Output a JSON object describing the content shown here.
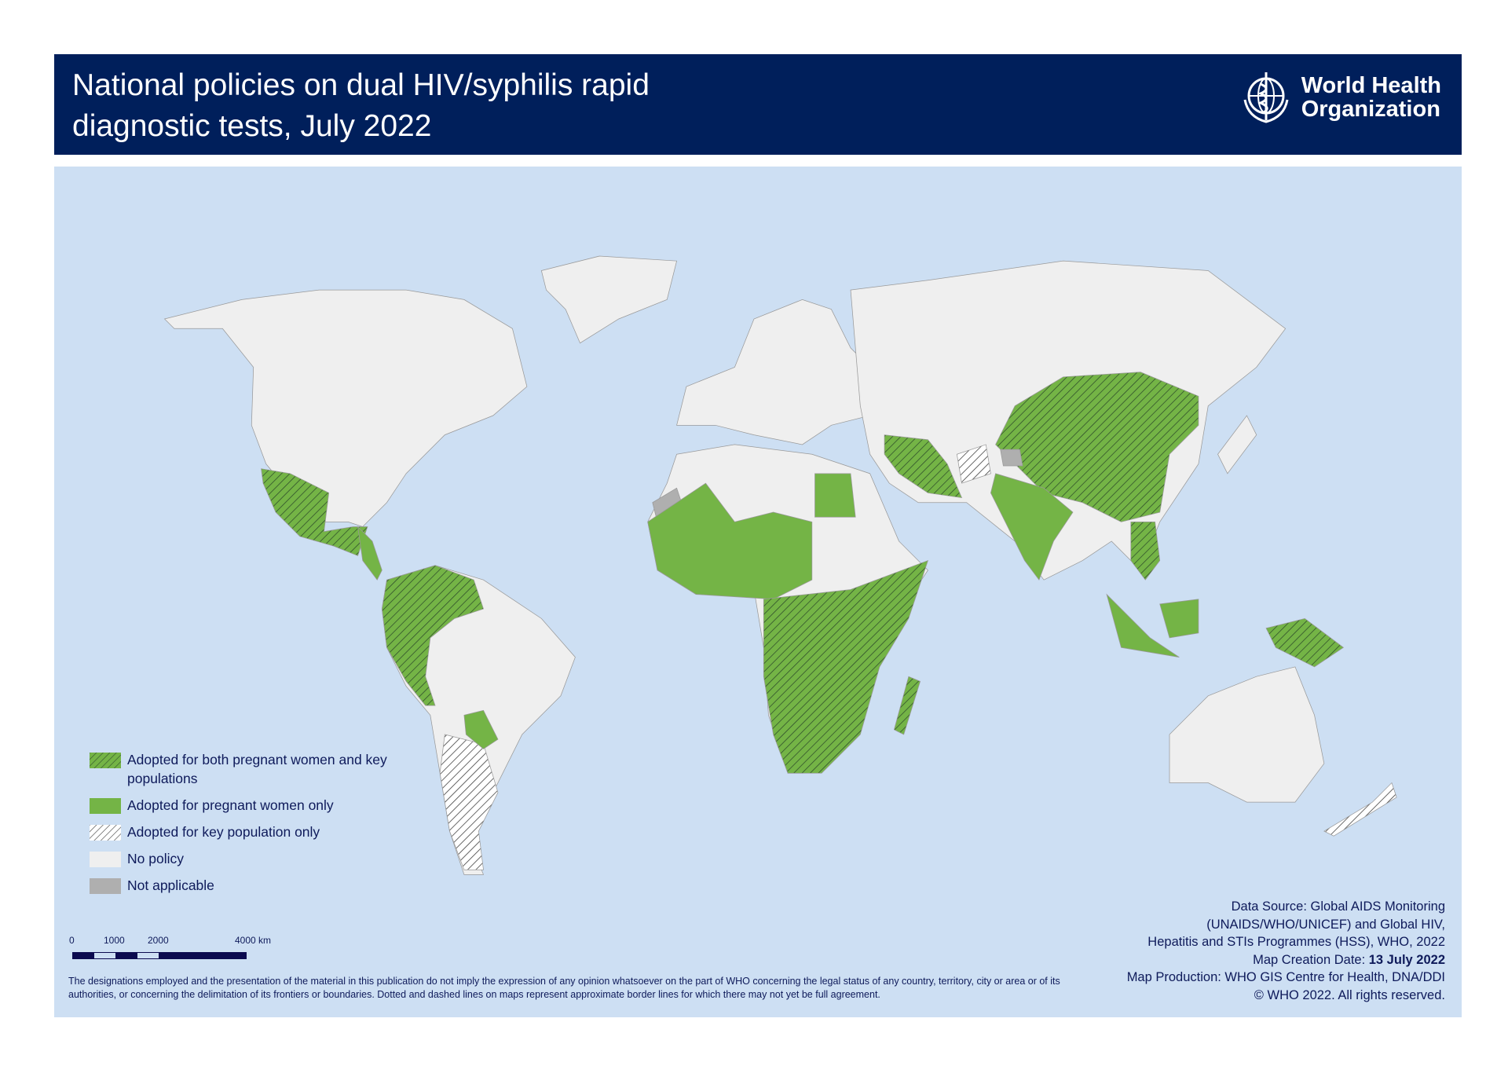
{
  "header": {
    "title_line1": "National policies on dual HIV/syphilis rapid",
    "title_line2": "diagnostic tests, July 2022",
    "logo_text_line1": "World Health",
    "logo_text_line2": "Organization"
  },
  "colors": {
    "header_bg": "#001f5b",
    "ocean": "#cddff3",
    "both": "#74b446",
    "pregnant_only": "#74b446",
    "key_only_bg": "#ffffff",
    "no_policy": "#efefef",
    "not_applicable": "#afafaf"
  },
  "legend": {
    "items": [
      {
        "label": "Adopted for both pregnant women and key populations",
        "pattern": "green-hatched"
      },
      {
        "label": "Adopted for pregnant women only",
        "pattern": "green-solid"
      },
      {
        "label": "Adopted for key population only",
        "pattern": "white-hatched"
      },
      {
        "label": "No policy",
        "pattern": "light-grey"
      },
      {
        "label": "Not applicable",
        "pattern": "grey"
      }
    ]
  },
  "scale_bar": {
    "ticks": [
      "0",
      "1000",
      "2000",
      "4000 km"
    ]
  },
  "disclaimer": "The designations employed and the presentation of the material in this publication do not imply the expression of any opinion whatsoever on the part of WHO concerning the legal status of any country, territory, city or area or of its authorities, or concerning the delimitation of its frontiers or boundaries. Dotted and dashed lines on maps represent approximate border lines for which there may not yet be full agreement.",
  "credits": {
    "line1": "Data Source: Global AIDS Monitoring",
    "line2": "(UNAIDS/WHO/UNICEF) and Global HIV,",
    "line3": "Hepatitis and STIs Programmes (HSS), WHO, 2022",
    "creation_label": "Map Creation Date: ",
    "creation_date": "13 July 2022",
    "line5": "Map Production: WHO GIS Centre for Health, DNA/DDI",
    "line6": "© WHO 2022. All rights reserved."
  }
}
